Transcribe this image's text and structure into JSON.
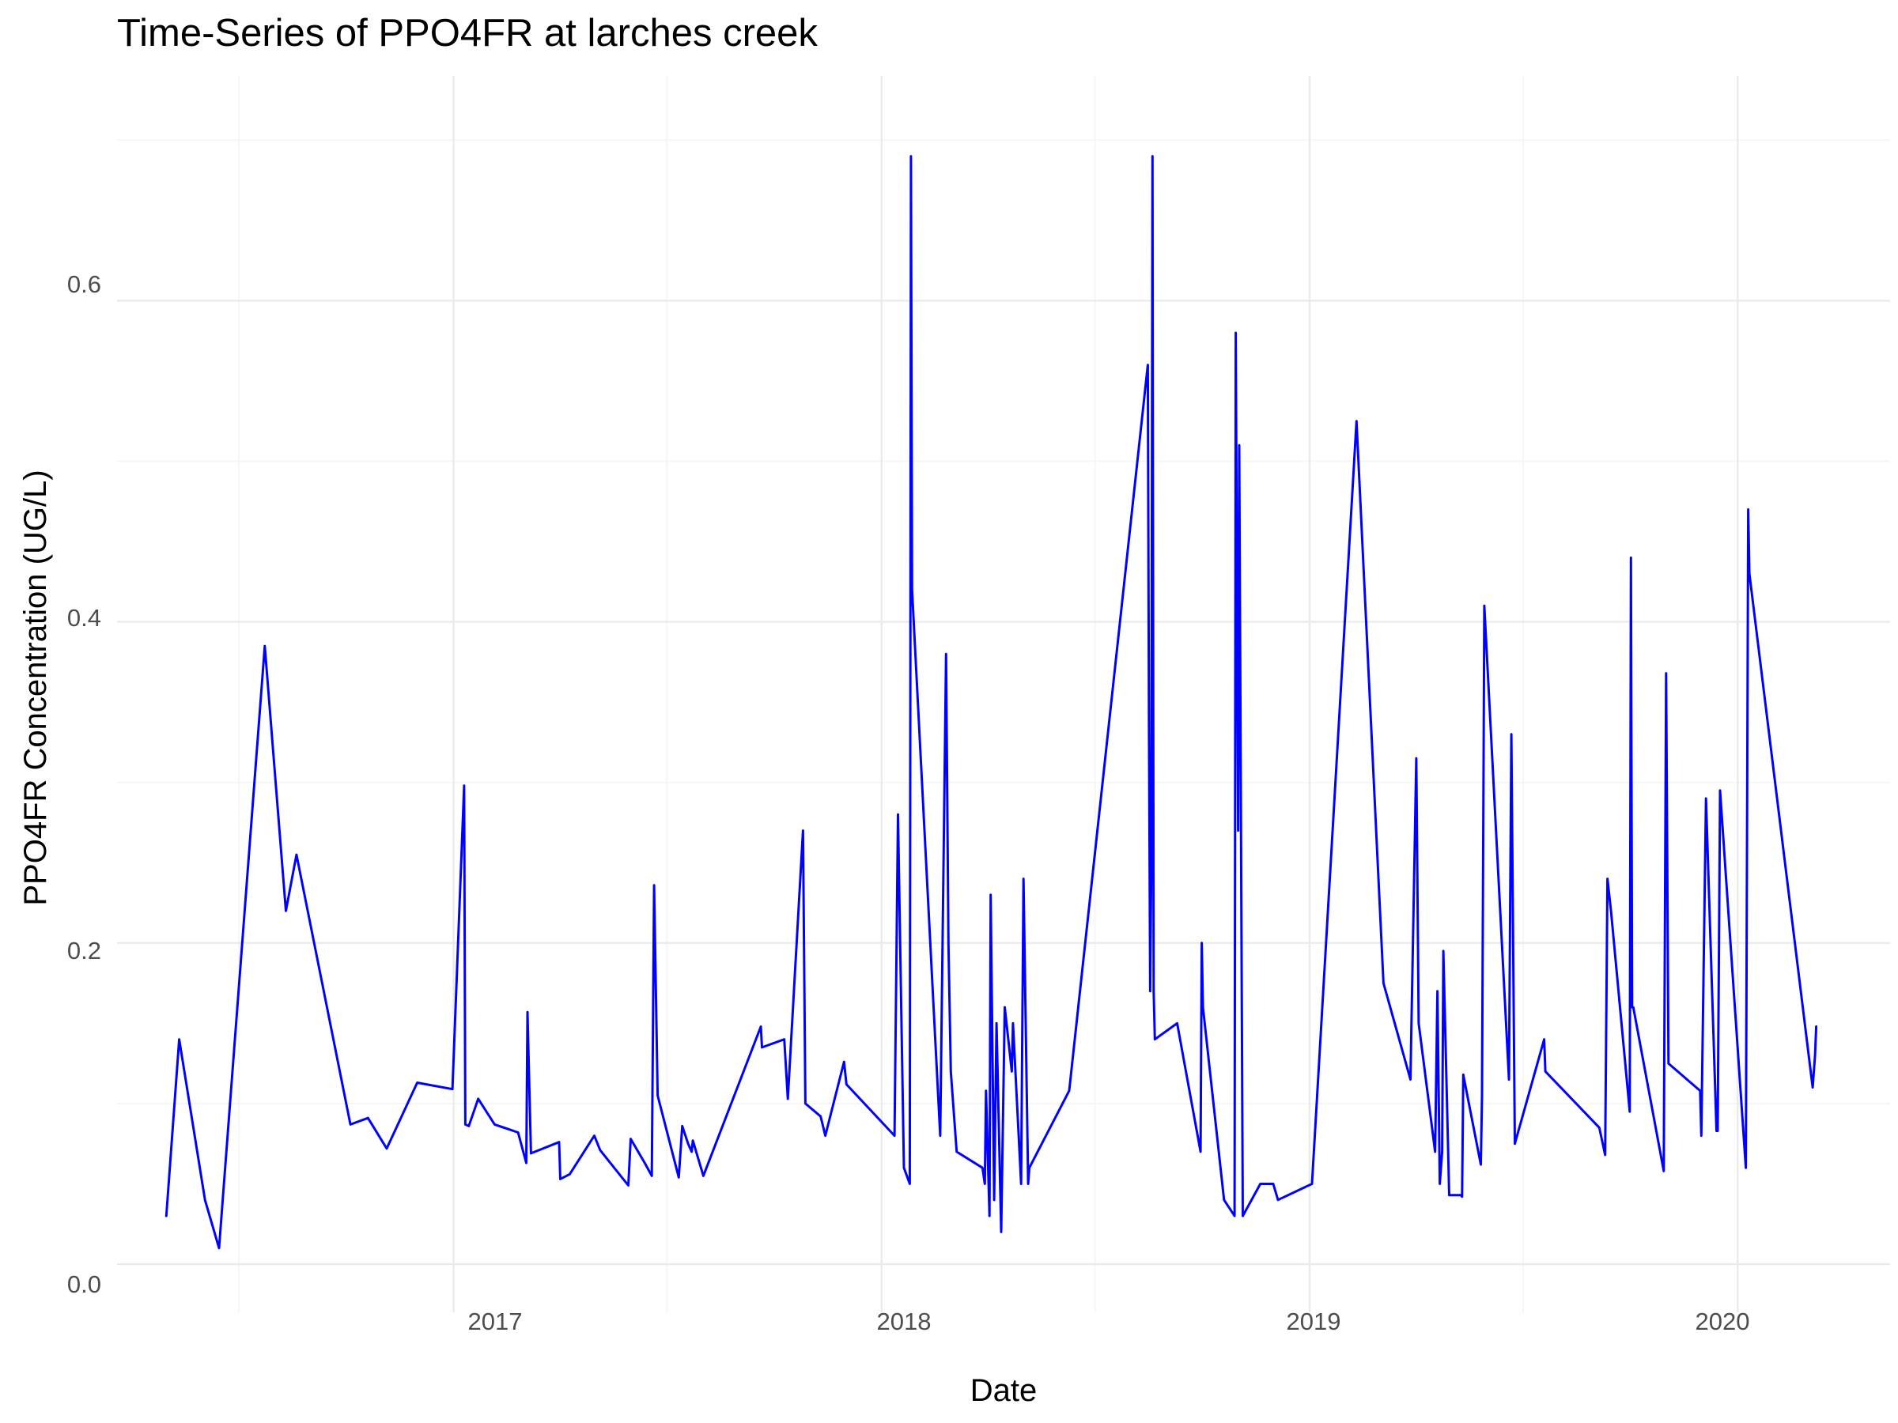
{
  "chart_data": {
    "type": "line",
    "title": "Time-Series of PPO4FR at larches creek",
    "xlabel": "Date",
    "ylabel": "PPO4FR Concentration (UG/L)",
    "x_ticks": [
      "2017",
      "2018",
      "2019",
      "2020"
    ],
    "y_ticks": [
      "0.0",
      "0.2",
      "0.4",
      "0.6"
    ],
    "xlim": [
      "2016-03-20",
      "2020-05-10"
    ],
    "ylim": [
      -0.03,
      0.74
    ],
    "grid": true,
    "line_color": "#0000ff",
    "series": [
      {
        "x": [
          "2016-05-01",
          "2016-05-12",
          "2016-06-03",
          "2016-06-15",
          "2016-07-24",
          "2016-08-11",
          "2016-08-20",
          "2016-10-05",
          "2016-10-20",
          "2016-11-05",
          "2016-12-01",
          "2016-12-31",
          "2017-01-10",
          "2017-01-11",
          "2017-01-14",
          "2017-01-22",
          "2017-02-05",
          "2017-02-25",
          "2017-03-04",
          "2017-03-05",
          "2017-03-08",
          "2017-04-01",
          "2017-04-02",
          "2017-04-10",
          "2017-05-01",
          "2017-05-06",
          "2017-05-30",
          "2017-06-01",
          "2017-06-13",
          "2017-06-19",
          "2017-06-21",
          "2017-06-24",
          "2017-07-12",
          "2017-07-15",
          "2017-07-20",
          "2017-07-23",
          "2017-07-24",
          "2017-08-02",
          "2017-09-20",
          "2017-09-21",
          "2017-10-10",
          "2017-10-13",
          "2017-10-26",
          "2017-10-28",
          "2017-11-10",
          "2017-11-14",
          "2017-11-30",
          "2017-12-02",
          "2018-01-12",
          "2018-01-15",
          "2018-01-20",
          "2018-01-25",
          "2018-01-26",
          "2018-01-27",
          "2018-02-20",
          "2018-02-25",
          "2018-02-27",
          "2018-03-01",
          "2018-03-06",
          "2018-03-28",
          "2018-03-30",
          "2018-03-31",
          "2018-04-03",
          "2018-04-04",
          "2018-04-07",
          "2018-04-09",
          "2018-04-13",
          "2018-04-16",
          "2018-04-22",
          "2018-04-23",
          "2018-04-30",
          "2018-05-02",
          "2018-05-06",
          "2018-05-07",
          "2018-06-10",
          "2018-08-16",
          "2018-08-17",
          "2018-08-18",
          "2018-08-19",
          "2018-08-20",
          "2018-08-21",
          "2018-08-22",
          "2018-09-10",
          "2018-09-30",
          "2018-10-01",
          "2018-10-02",
          "2018-10-20",
          "2018-10-29",
          "2018-10-30",
          "2018-11-01",
          "2018-11-02",
          "2018-11-05",
          "2018-11-20",
          "2018-12-01",
          "2018-12-05",
          "2019-01-03",
          "2019-02-10",
          "2019-03-05",
          "2019-03-28",
          "2019-04-02",
          "2019-04-04",
          "2019-04-18",
          "2019-04-20",
          "2019-04-22",
          "2019-04-24",
          "2019-04-25",
          "2019-04-30",
          "2019-05-08",
          "2019-05-10",
          "2019-05-11",
          "2019-05-12",
          "2019-05-27",
          "2019-05-28",
          "2019-05-30",
          "2019-06-20",
          "2019-06-22",
          "2019-06-25",
          "2019-07-20",
          "2019-07-21",
          "2019-09-05",
          "2019-09-10",
          "2019-09-12",
          "2019-09-15",
          "2019-10-01",
          "2019-10-02",
          "2019-10-03",
          "2019-10-04",
          "2019-10-30",
          "2019-11-01",
          "2019-11-03",
          "2019-11-30",
          "2019-12-01",
          "2019-12-05",
          "2019-12-14",
          "2019-12-15",
          "2019-12-17",
          "2020-01-08",
          "2020-01-10",
          "2020-01-11",
          "2020-03-05",
          "2020-03-07",
          "2020-03-08"
        ],
        "y": [
          0.03,
          0.14,
          0.04,
          0.01,
          0.385,
          0.22,
          0.255,
          0.087,
          0.091,
          0.072,
          0.113,
          0.109,
          0.298,
          0.087,
          0.086,
          0.103,
          0.087,
          0.082,
          0.063,
          0.157,
          0.069,
          0.076,
          0.053,
          0.056,
          0.08,
          0.071,
          0.049,
          0.078,
          0.063,
          0.055,
          0.236,
          0.105,
          0.054,
          0.086,
          0.075,
          0.07,
          0.077,
          0.055,
          0.148,
          0.135,
          0.14,
          0.103,
          0.27,
          0.1,
          0.092,
          0.08,
          0.126,
          0.112,
          0.08,
          0.28,
          0.06,
          0.05,
          0.69,
          0.42,
          0.08,
          0.38,
          0.2,
          0.12,
          0.07,
          0.06,
          0.05,
          0.108,
          0.03,
          0.23,
          0.04,
          0.15,
          0.02,
          0.16,
          0.12,
          0.15,
          0.05,
          0.24,
          0.05,
          0.06,
          0.108,
          0.56,
          0.33,
          0.17,
          0.25,
          0.69,
          0.17,
          0.14,
          0.15,
          0.07,
          0.2,
          0.16,
          0.04,
          0.03,
          0.58,
          0.27,
          0.51,
          0.03,
          0.05,
          0.05,
          0.04,
          0.05,
          0.525,
          0.175,
          0.115,
          0.315,
          0.15,
          0.07,
          0.17,
          0.05,
          0.07,
          0.195,
          0.043,
          0.043,
          0.043,
          0.042,
          0.118,
          0.062,
          0.105,
          0.41,
          0.115,
          0.33,
          0.075,
          0.14,
          0.12,
          0.085,
          0.068,
          0.24,
          0.22,
          0.095,
          0.44,
          0.16,
          0.16,
          0.058,
          0.368,
          0.125,
          0.108,
          0.08,
          0.29,
          0.083,
          0.083,
          0.295,
          0.06,
          0.47,
          0.43,
          0.11,
          0.13,
          0.148
        ]
      }
    ]
  }
}
